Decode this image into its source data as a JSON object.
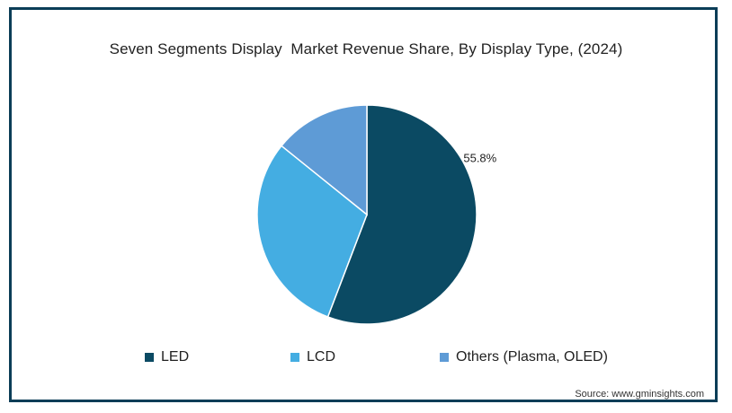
{
  "chart_data": {
    "type": "pie",
    "title": "Seven Segments Display  Market Revenue Share, By Display Type, (2024)",
    "categories": [
      "LED",
      "LCD",
      "Others (Plasma, OLED)"
    ],
    "values": [
      55.8,
      30.0,
      14.2
    ],
    "colors": [
      "#0b4a63",
      "#44ade2",
      "#5e9bd6"
    ],
    "data_labels": [
      "55.8%",
      "",
      ""
    ],
    "legend_position": "bottom"
  },
  "source": "Source: www.gminsights.com"
}
